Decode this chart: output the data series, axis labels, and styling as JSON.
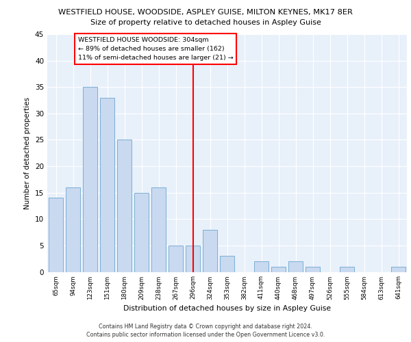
{
  "title": "WESTFIELD HOUSE, WOODSIDE, ASPLEY GUISE, MILTON KEYNES, MK17 8ER",
  "subtitle": "Size of property relative to detached houses in Aspley Guise",
  "xlabel": "Distribution of detached houses by size in Aspley Guise",
  "ylabel": "Number of detached properties",
  "categories": [
    "65sqm",
    "94sqm",
    "123sqm",
    "151sqm",
    "180sqm",
    "209sqm",
    "238sqm",
    "267sqm",
    "296sqm",
    "324sqm",
    "353sqm",
    "382sqm",
    "411sqm",
    "440sqm",
    "468sqm",
    "497sqm",
    "526sqm",
    "555sqm",
    "584sqm",
    "613sqm",
    "641sqm"
  ],
  "values": [
    14,
    16,
    35,
    33,
    25,
    15,
    16,
    5,
    5,
    8,
    3,
    0,
    2,
    1,
    2,
    1,
    0,
    1,
    0,
    0,
    1
  ],
  "bar_color": "#c9d9f0",
  "bar_edge_color": "#7bafd4",
  "vline_x": 8,
  "vline_color": "red",
  "annotation_line1": "WESTFIELD HOUSE WOODSIDE: 304sqm",
  "annotation_line2": "← 89% of detached houses are smaller (162)",
  "annotation_line3": "11% of semi-detached houses are larger (21) →",
  "annotation_box_color": "white",
  "annotation_box_edge": "red",
  "ylim": [
    0,
    45
  ],
  "yticks": [
    0,
    5,
    10,
    15,
    20,
    25,
    30,
    35,
    40,
    45
  ],
  "footer_line1": "Contains HM Land Registry data © Crown copyright and database right 2024.",
  "footer_line2": "Contains public sector information licensed under the Open Government Licence v3.0.",
  "plot_bg_color": "#e8f0fa"
}
